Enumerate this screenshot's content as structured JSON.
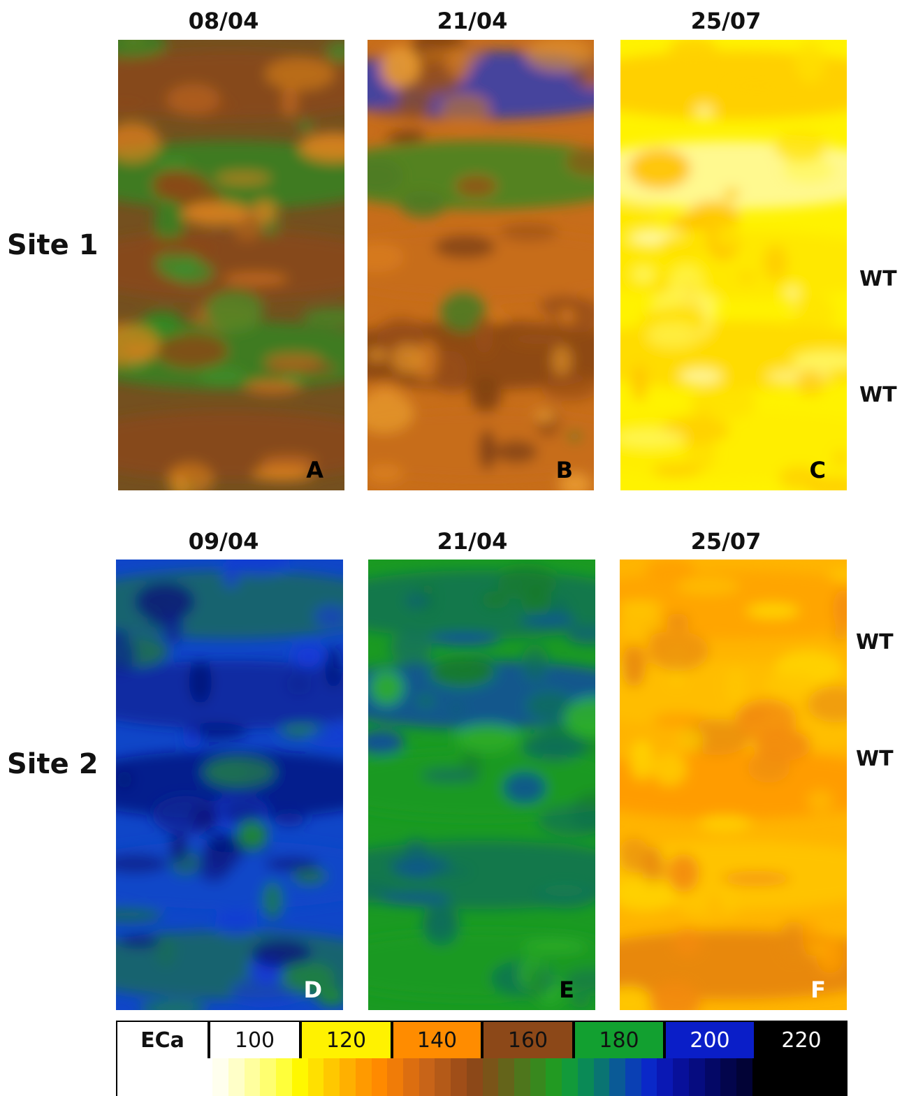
{
  "rows": [
    {
      "site_label": "Site 1",
      "panels": [
        {
          "date": "08/04",
          "letter": "A",
          "letter_color": "#000000",
          "base": "#74501f",
          "blob_colors": [
            "#2f8a22",
            "#8c4818",
            "#c0691e",
            "#3e8e2a",
            "#e0851d"
          ],
          "bands": [
            "#8c4818",
            "#2f8a22",
            "#8c4818",
            "#2f8a22",
            "#8c4818"
          ],
          "seed": 11
        },
        {
          "date": "21/04",
          "letter": "B",
          "letter_color": "#000000",
          "base": "#c76d1a",
          "blob_colors": [
            "#9a4f16",
            "#d97e1e",
            "#7b3e12",
            "#4d7a22",
            "#e89a2e"
          ],
          "bands": [
            "#1836c8",
            "#2f8a22",
            "#c76d1a",
            "#7b3e12",
            "#c76d1a"
          ],
          "seed": 23
        },
        {
          "date": "25/07",
          "letter": "C",
          "letter_color": "#000000",
          "base": "#fff200",
          "blob_colors": [
            "#ffe000",
            "#ffd000",
            "#fff86a",
            "#ffc200",
            "#fffbbf"
          ],
          "bands": [
            "#ffc400",
            "#fffbbf",
            "#ffe400",
            "#ffd400",
            "#ffec00"
          ],
          "seed": 37
        }
      ],
      "wt_labels": [
        "WT",
        "WT"
      ]
    },
    {
      "site_label": "Site 2",
      "panels": [
        {
          "date": "09/04",
          "letter": "D",
          "letter_color": "#ffffff",
          "base": "#0f46c8",
          "blob_colors": [
            "#0a2496",
            "#07157a",
            "#1b6e52",
            "#1f8c2a",
            "#1538d8"
          ],
          "bands": [
            "#1b6e52",
            "#0a2496",
            "#07157a",
            "#0f46c8",
            "#1b6e52"
          ],
          "seed": 41
        },
        {
          "date": "21/04",
          "letter": "E",
          "letter_color": "#000000",
          "base": "#1a9a22",
          "blob_colors": [
            "#126e5a",
            "#0c42b0",
            "#2fb02a",
            "#157a2c",
            "#0d5e7a"
          ],
          "bands": [
            "#126e5a",
            "#0c42b0",
            "#1a9a22",
            "#126e5a",
            "#1a9a22"
          ],
          "seed": 53
        },
        {
          "date": "25/07",
          "letter": "F",
          "letter_color": "#ffffff",
          "base": "#ffb400",
          "blob_colors": [
            "#ff9e00",
            "#ffc800",
            "#f28a10",
            "#ffd600",
            "#e88a0c"
          ],
          "bands": [
            "#ffa000",
            "#ffc000",
            "#ff9400",
            "#ffc800",
            "#e07a10"
          ],
          "seed": 67
        }
      ],
      "wt_labels": [
        "WT",
        "WT"
      ]
    }
  ],
  "legend": {
    "label": "ECa",
    "values": [
      "100",
      "120",
      "140",
      "160",
      "180",
      "200",
      "220"
    ],
    "value_colors": [
      "#ffffff",
      "#fff200",
      "#ff8c00",
      "#8c4818",
      "#12a030",
      "#0a1ec8",
      "#000000"
    ],
    "value_text_colors": [
      "#111111",
      "#111111",
      "#111111",
      "#111111",
      "#111111",
      "#ffffff",
      "#ffffff"
    ],
    "ramp": [
      "#ffffff",
      "#ffffff",
      "#ffffff",
      "#ffffff",
      "#ffffff",
      "#ffffff",
      "#ffffee",
      "#ffffc8",
      "#ffff9e",
      "#ffff70",
      "#ffff3a",
      "#fff800",
      "#ffe000",
      "#ffc800",
      "#ffb000",
      "#ff9a00",
      "#ff8a00",
      "#f07c08",
      "#dc6e10",
      "#c86418",
      "#b45a18",
      "#a04e18",
      "#8c4818",
      "#7a5418",
      "#64641a",
      "#4e761c",
      "#38881e",
      "#229a22",
      "#129a3a",
      "#0a8a56",
      "#0a7472",
      "#0a5a96",
      "#0a40b4",
      "#0a28c8",
      "#0a18b4",
      "#08109a",
      "#060c80",
      "#040866",
      "#03054c",
      "#020336",
      "#000000",
      "#000000",
      "#000000",
      "#000000",
      "#000000",
      "#000000"
    ]
  },
  "chart_data": {
    "type": "heatmap",
    "title": "",
    "colorbar_label": "ECa",
    "colorbar_ticks": [
      100,
      120,
      140,
      160,
      180,
      200,
      220
    ],
    "rows": [
      "Site 1",
      "Site 2"
    ],
    "panels": [
      {
        "letter": "A",
        "site": "Site 1",
        "date": "08/04",
        "dominant_eca_range": [
          150,
          185
        ]
      },
      {
        "letter": "B",
        "site": "Site 1",
        "date": "21/04",
        "dominant_eca_range": [
          140,
          165
        ]
      },
      {
        "letter": "C",
        "site": "Site 1",
        "date": "25/07",
        "dominant_eca_range": [
          110,
          130
        ]
      },
      {
        "letter": "D",
        "site": "Site 2",
        "date": "09/04",
        "dominant_eca_range": [
          185,
          215
        ]
      },
      {
        "letter": "E",
        "site": "Site 2",
        "date": "21/04",
        "dominant_eca_range": [
          175,
          200
        ]
      },
      {
        "letter": "F",
        "site": "Site 2",
        "date": "25/07",
        "dominant_eca_range": [
          125,
          140
        ]
      }
    ],
    "annotations": [
      "WT",
      "WT",
      "WT",
      "WT"
    ]
  }
}
